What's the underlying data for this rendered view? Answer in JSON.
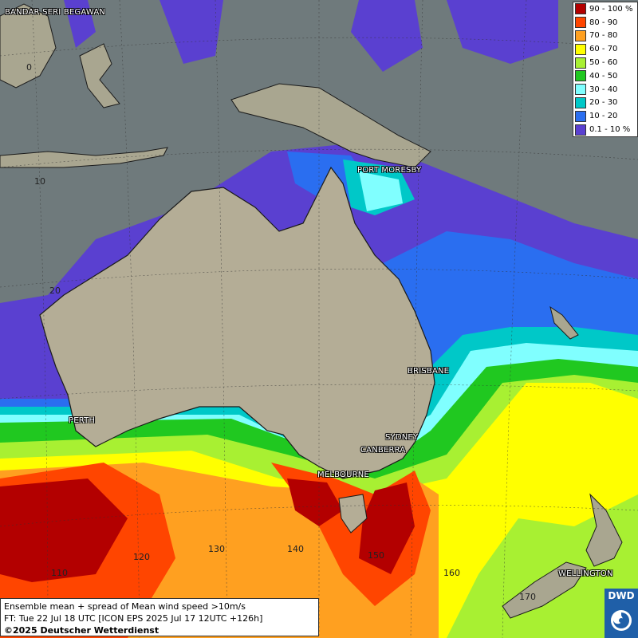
{
  "legend": {
    "items": [
      {
        "label": "90 - 100 %",
        "color": "#b30000"
      },
      {
        "label": "80 - 90",
        "color": "#ff4500"
      },
      {
        "label": "70 - 80",
        "color": "#ffa020"
      },
      {
        "label": "60 - 70",
        "color": "#ffff00"
      },
      {
        "label": "50 - 60",
        "color": "#a8f032"
      },
      {
        "label": "40 - 50",
        "color": "#20c820"
      },
      {
        "label": "30 - 40",
        "color": "#80ffff"
      },
      {
        "label": "20 - 30",
        "color": "#00c8c8"
      },
      {
        "label": "10 - 20",
        "color": "#2a6ef0"
      },
      {
        "label": "0.1 - 10 %",
        "color": "#5a40d0"
      }
    ]
  },
  "cities": {
    "bandar": "BANDAR SERI BEGAWAN",
    "port_moresby": "PORT MORESBY",
    "brisbane": "BRISBANE",
    "perth": "PERTH",
    "sydney": "SYDNEY",
    "canberra": "CANBERRA",
    "melbourne": "MELBOURNE",
    "wellington": "WELLINGTON"
  },
  "grid_labels": {
    "lat_0": "0",
    "lat_10": "10",
    "lat_20": "20",
    "lon_110": "110",
    "lon_120": "120",
    "lon_130": "130",
    "lon_140": "140",
    "lon_150": "150",
    "lon_160": "160",
    "lon_170": "170"
  },
  "info": {
    "line1": "Ensemble mean + spread of Mean wind speed >10m/s",
    "line2": "FT: Tue 22 Jul 18 UTC [ICON EPS 2025 Jul 17 12UTC +126h]",
    "line3": "©2025 Deutscher Wetterdienst"
  },
  "logo": {
    "text": "DWD"
  }
}
